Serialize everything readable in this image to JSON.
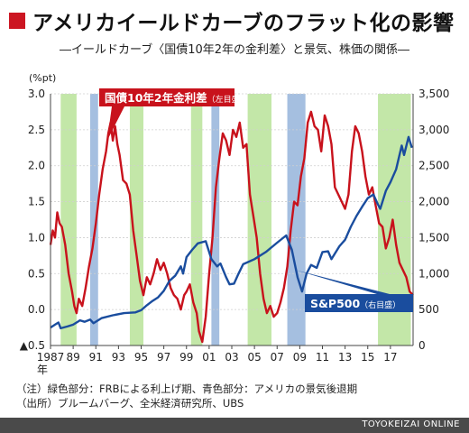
{
  "title": "アメリカイールドカーブのフラット化の影響",
  "subtitle": "―イールドカーブ〈国債10年2年の金利差〉と景気、株価の関係―",
  "notes": {
    "line1": "（注）緑色部分：FRBによる利上げ期、青色部分：アメリカの景気後退期",
    "line2": "（出所）ブルームバーグ、全米経済研究所、UBS"
  },
  "brand": "TOYOKEIZAI ONLINE",
  "colors": {
    "spread_line": "#c8121c",
    "sp500_line": "#1a4d9e",
    "green_band": "#c3e7a8",
    "blue_band": "#a5bfe0",
    "title_square": "#cc1622"
  },
  "chart_data": {
    "type": "line",
    "left_axis": {
      "unit_label": "(%pt)",
      "ylim": [
        -0.5,
        3.0
      ],
      "ticks": [
        3.0,
        2.5,
        2.0,
        1.5,
        1.0,
        0.5,
        0.0,
        -0.5
      ],
      "tick_labels": [
        "3.0",
        "2.5",
        "2.0",
        "1.5",
        "1.0",
        "0.5",
        "0.0",
        "▲0.5"
      ]
    },
    "right_axis": {
      "ylim": [
        0,
        3500
      ],
      "ticks": [
        3500,
        3000,
        2500,
        2000,
        1500,
        1000,
        500,
        0
      ],
      "tick_labels": [
        "3,500",
        "3,000",
        "2,500",
        "2,000",
        "1,500",
        "1,000",
        "500",
        "0"
      ]
    },
    "x_axis": {
      "range": [
        1987,
        2019
      ],
      "ticks": [
        1987,
        1989,
        1991,
        1993,
        1995,
        1997,
        1999,
        2001,
        2003,
        2005,
        2007,
        2009,
        2011,
        2013,
        2015,
        2017
      ],
      "tick_labels": [
        "1987",
        "89",
        "91",
        "93",
        "95",
        "97",
        "99",
        "01",
        "03",
        "05",
        "07",
        "09",
        "11",
        "13",
        "15",
        "17"
      ],
      "first_tick_suffix": "年"
    },
    "rate_hike_periods": [
      [
        1987.9,
        1989.3
      ],
      [
        1994.0,
        1995.2
      ],
      [
        1999.4,
        2000.4
      ],
      [
        2004.4,
        2006.5
      ],
      [
        2015.9,
        2018.8
      ]
    ],
    "recession_periods": [
      [
        1990.5,
        1991.2
      ],
      [
        2001.2,
        2001.9
      ],
      [
        2007.9,
        2009.5
      ]
    ],
    "series": [
      {
        "name": "国債10年2年金利差",
        "axis_note": "（左目盛）",
        "axis": "left",
        "x": [
          1987.0,
          1987.2,
          1987.4,
          1987.6,
          1987.8,
          1988.0,
          1988.3,
          1988.6,
          1988.9,
          1989.1,
          1989.3,
          1989.5,
          1989.8,
          1990.1,
          1990.4,
          1990.7,
          1991.0,
          1991.3,
          1991.6,
          1991.9,
          1992.1,
          1992.3,
          1992.5,
          1992.7,
          1992.9,
          1993.1,
          1993.4,
          1993.7,
          1994.0,
          1994.3,
          1994.6,
          1994.9,
          1995.2,
          1995.5,
          1995.8,
          1996.1,
          1996.4,
          1996.7,
          1997.0,
          1997.3,
          1997.6,
          1997.9,
          1998.2,
          1998.5,
          1998.8,
          1999.0,
          1999.3,
          1999.6,
          1999.9,
          2000.1,
          2000.4,
          2000.7,
          2001.0,
          2001.3,
          2001.6,
          2001.9,
          2002.2,
          2002.5,
          2002.8,
          2003.1,
          2003.4,
          2003.7,
          2004.0,
          2004.3,
          2004.6,
          2004.9,
          2005.2,
          2005.5,
          2005.8,
          2006.1,
          2006.4,
          2006.7,
          2007.0,
          2007.3,
          2007.6,
          2007.9,
          2008.2,
          2008.5,
          2008.8,
          2009.1,
          2009.4,
          2009.7,
          2010.0,
          2010.3,
          2010.6,
          2010.9,
          2011.2,
          2011.5,
          2011.8,
          2012.1,
          2012.4,
          2012.7,
          2013.0,
          2013.3,
          2013.6,
          2013.9,
          2014.2,
          2014.5,
          2014.8,
          2015.1,
          2015.4,
          2015.7,
          2016.0,
          2016.3,
          2016.6,
          2016.9,
          2017.2,
          2017.5,
          2017.8,
          2018.1,
          2018.4,
          2018.7,
          2019.0
        ],
        "values": [
          0.9,
          1.1,
          1.0,
          1.35,
          1.2,
          1.15,
          0.9,
          0.5,
          0.25,
          0.05,
          -0.05,
          0.15,
          0.05,
          0.3,
          0.6,
          0.85,
          1.2,
          1.6,
          1.95,
          2.2,
          2.45,
          2.6,
          2.35,
          2.55,
          2.3,
          2.15,
          1.8,
          1.75,
          1.6,
          1.1,
          0.75,
          0.4,
          0.2,
          0.45,
          0.35,
          0.5,
          0.7,
          0.55,
          0.65,
          0.5,
          0.3,
          0.2,
          0.15,
          0.0,
          0.2,
          0.25,
          0.35,
          0.1,
          -0.05,
          -0.3,
          -0.45,
          -0.1,
          0.5,
          1.0,
          1.7,
          2.1,
          2.45,
          2.35,
          2.15,
          2.5,
          2.4,
          2.6,
          2.25,
          2.3,
          1.6,
          1.3,
          1.0,
          0.5,
          0.15,
          -0.05,
          0.05,
          -0.1,
          -0.05,
          0.1,
          0.3,
          0.6,
          1.1,
          1.5,
          1.45,
          1.85,
          2.1,
          2.6,
          2.75,
          2.55,
          2.5,
          2.2,
          2.7,
          2.55,
          2.3,
          1.7,
          1.6,
          1.5,
          1.4,
          1.6,
          2.2,
          2.55,
          2.45,
          2.2,
          1.85,
          1.6,
          1.7,
          1.45,
          1.2,
          1.15,
          0.85,
          1.0,
          1.25,
          0.9,
          0.65,
          0.55,
          0.45,
          0.25,
          0.2
        ]
      },
      {
        "name": "S&P500",
        "axis_note": "（右目盛）",
        "axis": "right",
        "x": [
          1987.0,
          1987.4,
          1987.7,
          1987.9,
          1988.5,
          1989.0,
          1989.6,
          1990.0,
          1990.5,
          1990.8,
          1991.5,
          1992.5,
          1993.5,
          1994.5,
          1995.0,
          1995.5,
          1996.0,
          1996.5,
          1997.0,
          1997.5,
          1998.0,
          1998.5,
          1998.7,
          1999.0,
          1999.5,
          2000.0,
          2000.7,
          2001.2,
          2001.7,
          2002.0,
          2002.5,
          2002.8,
          2003.2,
          2003.6,
          2004.0,
          2005.0,
          2006.0,
          2007.0,
          2007.8,
          2008.3,
          2008.8,
          2009.2,
          2009.6,
          2010.0,
          2010.5,
          2011.0,
          2011.5,
          2011.8,
          2012.5,
          2013.0,
          2013.5,
          2014.0,
          2014.5,
          2015.0,
          2015.5,
          2015.9,
          2016.1,
          2016.6,
          2017.0,
          2017.5,
          2018.0,
          2018.2,
          2018.6,
          2018.9
        ],
        "values": [
          250,
          290,
          320,
          240,
          265,
          290,
          350,
          330,
          360,
          310,
          380,
          420,
          450,
          460,
          490,
          560,
          620,
          670,
          760,
          900,
          970,
          1100,
          1000,
          1230,
          1330,
          1420,
          1450,
          1200,
          1100,
          1140,
          950,
          850,
          860,
          1000,
          1130,
          1200,
          1300,
          1430,
          1530,
          1330,
          950,
          750,
          1000,
          1120,
          1080,
          1300,
          1310,
          1200,
          1380,
          1470,
          1650,
          1800,
          1930,
          2050,
          2100,
          1960,
          1900,
          2150,
          2270,
          2450,
          2780,
          2650,
          2900,
          2750
        ]
      }
    ]
  }
}
